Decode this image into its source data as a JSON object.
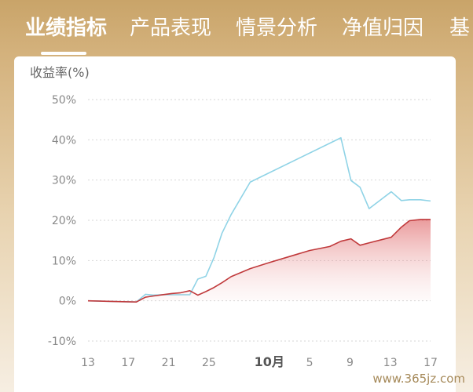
{
  "tabs": [
    {
      "label": "业绩指标",
      "active": true
    },
    {
      "label": "产品表现",
      "active": false
    },
    {
      "label": "情景分析",
      "active": false
    },
    {
      "label": "净值归因",
      "active": false
    },
    {
      "label": "基",
      "active": false
    }
  ],
  "watermark": "www.365jz.com",
  "chart_data": {
    "type": "area",
    "ylabel": "收益率(%)",
    "ylim": [
      -10,
      50
    ],
    "y_ticks": [
      -10,
      0,
      10,
      20,
      30,
      40,
      50
    ],
    "y_tick_labels": [
      "-10%",
      "0%",
      "10%",
      "20%",
      "30%",
      "40%",
      "50%"
    ],
    "x_tick_labels": [
      {
        "day": 13,
        "label": "13"
      },
      {
        "day": 17,
        "label": "17"
      },
      {
        "day": 21,
        "label": "21"
      },
      {
        "day": 25,
        "label": "25"
      },
      {
        "day": 31,
        "label": "10月"
      },
      {
        "day": 35,
        "label": "5"
      },
      {
        "day": 39,
        "label": "9"
      },
      {
        "day": 43,
        "label": "13"
      },
      {
        "day": 47,
        "label": "17"
      }
    ],
    "x_tick_note": "x values are days counted from September 1; 31 = October 1",
    "grid": "horizontal dashed",
    "series": [
      {
        "name": "",
        "color": "#8fd3e6",
        "fill": false,
        "x": [
          13,
          16,
          17.8,
          18.7,
          19.5,
          20.4,
          21.3,
          22.2,
          23.1,
          23.9,
          24.7,
          25.5,
          26.3,
          27.2,
          29.1,
          38.1,
          39.1,
          40.0,
          40.9,
          43.1,
          44.1,
          44.9,
          46.0,
          47.0
        ],
        "y": [
          0,
          -0.2,
          -0.3,
          1.6,
          1.4,
          1.5,
          1.5,
          1.5,
          1.5,
          5.4,
          6.1,
          10.7,
          16.8,
          21.4,
          29.5,
          40.5,
          29.9,
          28.2,
          22.9,
          27.1,
          24.9,
          25.1,
          25.1,
          24.8
        ]
      },
      {
        "name": "",
        "color": "#c0393b",
        "fill": true,
        "x": [
          13,
          16,
          17.8,
          18.7,
          19.5,
          20.4,
          21.3,
          22.2,
          23.1,
          23.9,
          24.7,
          25.5,
          26.3,
          27.2,
          29.1,
          31.0,
          33.0,
          35.0,
          37.0,
          38.1,
          39.1,
          40.0,
          40.9,
          43.1,
          44.1,
          44.9,
          46.0,
          47.0
        ],
        "y": [
          0,
          -0.2,
          -0.3,
          0.9,
          1.2,
          1.5,
          1.8,
          2.0,
          2.5,
          1.4,
          2.3,
          3.3,
          4.5,
          6.0,
          8.0,
          9.5,
          11.0,
          12.5,
          13.5,
          14.8,
          15.4,
          13.8,
          14.4,
          15.8,
          18.3,
          19.9,
          20.2,
          20.2
        ]
      }
    ]
  }
}
